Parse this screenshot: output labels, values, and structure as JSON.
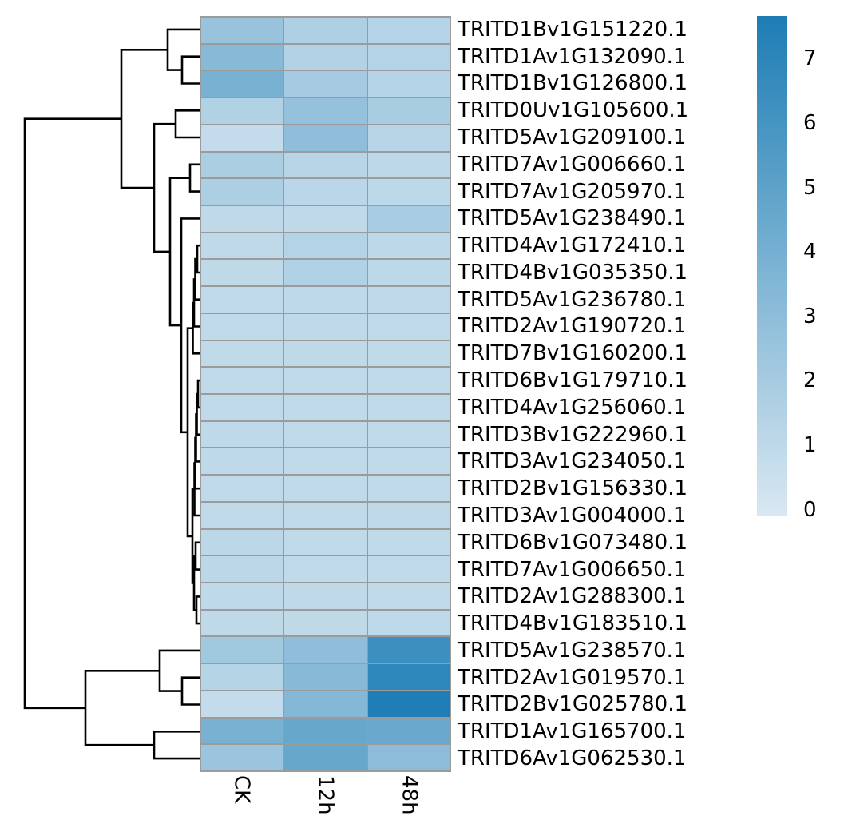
{
  "figure": {
    "description": "Row-clustered expression heatmap (pheatmap style) of durum wheat genes across three treatments, with row dendrogram on the left and a continuous blue color legend on the right",
    "background_color": "#ffffff",
    "gridline_color": "#9b9b9b",
    "dendrogram_color": "#000000"
  },
  "chart_data": {
    "type": "heatmap",
    "columns": [
      "CK",
      "12h",
      "48h"
    ],
    "rows": [
      {
        "label": "TRITD1Bv1G151220.1",
        "values": [
          2.6,
          1.7,
          1.4
        ]
      },
      {
        "label": "TRITD1Av1G132090.1",
        "values": [
          3.3,
          1.55,
          1.5
        ]
      },
      {
        "label": "TRITD1Bv1G126800.1",
        "values": [
          3.9,
          2.1,
          1.4
        ]
      },
      {
        "label": "TRITD0Uv1G105600.1",
        "values": [
          1.6,
          2.75,
          2.0
        ]
      },
      {
        "label": "TRITD5Av1G209100.1",
        "values": [
          0.9,
          2.95,
          1.35
        ]
      },
      {
        "label": "TRITD7Av1G006660.1",
        "values": [
          1.85,
          1.35,
          1.15
        ]
      },
      {
        "label": "TRITD7Av1G205970.1",
        "values": [
          1.8,
          1.25,
          1.15
        ]
      },
      {
        "label": "TRITD5Av1G238490.1",
        "values": [
          1.05,
          1.05,
          2.0
        ]
      },
      {
        "label": "TRITD4Av1G172410.1",
        "values": [
          1.05,
          1.5,
          1.15
        ]
      },
      {
        "label": "TRITD4Bv1G035350.1",
        "values": [
          1.05,
          1.6,
          1.15
        ]
      },
      {
        "label": "TRITD5Av1G236780.1",
        "values": [
          1.0,
          1.1,
          1.05
        ]
      },
      {
        "label": "TRITD2Av1G190720.1",
        "values": [
          1.0,
          1.05,
          1.0
        ]
      },
      {
        "label": "TRITD7Bv1G160200.1",
        "values": [
          1.0,
          1.05,
          1.0
        ]
      },
      {
        "label": "TRITD6Bv1G179710.1",
        "values": [
          1.0,
          1.0,
          1.0
        ]
      },
      {
        "label": "TRITD4Av1G256060.1",
        "values": [
          1.0,
          1.0,
          1.0
        ]
      },
      {
        "label": "TRITD3Bv1G222960.1",
        "values": [
          1.1,
          1.0,
          1.0
        ]
      },
      {
        "label": "TRITD3Av1G234050.1",
        "values": [
          1.1,
          1.0,
          1.0
        ]
      },
      {
        "label": "TRITD2Bv1G156330.1",
        "values": [
          1.0,
          1.0,
          1.0
        ]
      },
      {
        "label": "TRITD3Av1G004000.1",
        "values": [
          1.0,
          1.0,
          1.05
        ]
      },
      {
        "label": "TRITD6Bv1G073480.1",
        "values": [
          1.2,
          1.0,
          1.0
        ]
      },
      {
        "label": "TRITD7Av1G006650.1",
        "values": [
          1.2,
          1.0,
          1.0
        ]
      },
      {
        "label": "TRITD2Av1G288300.1",
        "values": [
          1.1,
          1.05,
          1.0
        ]
      },
      {
        "label": "TRITD4Bv1G183510.1",
        "values": [
          1.05,
          1.05,
          1.1
        ]
      },
      {
        "label": "TRITD5Av1G238570.1",
        "values": [
          2.3,
          2.95,
          6.3
        ]
      },
      {
        "label": "TRITD2Av1G019570.1",
        "values": [
          1.45,
          3.3,
          6.9
        ]
      },
      {
        "label": "TRITD2Bv1G025780.1",
        "values": [
          0.9,
          3.4,
          7.5
        ]
      },
      {
        "label": "TRITD1Av1G165700.1",
        "values": [
          3.9,
          4.6,
          4.5
        ]
      },
      {
        "label": "TRITD6Av1G062530.1",
        "values": [
          2.5,
          4.6,
          3.1
        ]
      }
    ],
    "colorscale": {
      "min": 0,
      "max": 7.6,
      "low_color": "#d9e8f2",
      "high_color": "#1d7db4",
      "legend_ticks": [
        "7",
        "6",
        "5",
        "4",
        "3",
        "2",
        "1",
        "0"
      ],
      "legend_tick_values": [
        7,
        6,
        5,
        4,
        3,
        2,
        1,
        0
      ],
      "legend_position": "right"
    },
    "row_dendrogram_newick": "(((TRITD1Bv1G151220.1,(TRITD1Av1G132090.1,TRITD1Bv1G126800.1)),((TRITD0Uv1G105600.1,TRITD5Av1G209100.1),((TRITD7Av1G006660.1,TRITD7Av1G205970.1),(TRITD5Av1G238490.1,(((((TRITD4Av1G172410.1,TRITD4Bv1G035350.1),TRITD5Av1G236780.1),TRITD2Av1G190720.1),TRITD7Bv1G160200.1),(((((TRITD6Bv1G179710.1,TRITD4Av1G256060.1),TRITD3Bv1G222960.1),TRITD3Av1G234050.1),TRITD2Bv1G156330.1),TRITD3Av1G004000.1),((TRITD6Bv1G073480.1,TRITD7Av1G006650.1),(TRITD2Av1G288300.1,TRITD4Bv1G183510.1))))))),((TRITD5Av1G238570.1,(TRITD2Av1G019570.1,TRITD2Bv1G025780.1)),(TRITD1Av1G165700.1,TRITD6Av1G062530.1)))",
    "title": "",
    "xlabel": "",
    "ylabel": "",
    "grid": true
  }
}
